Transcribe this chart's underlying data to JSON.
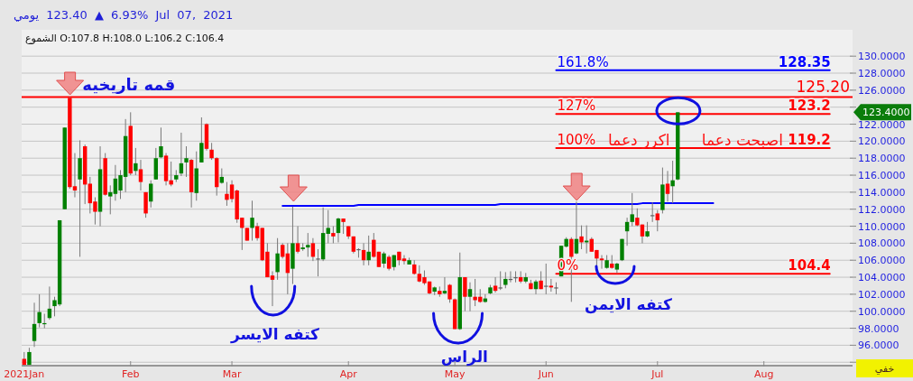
{
  "chart_data": {
    "type": "candlestick",
    "title": "يومي 123.40 ▲ 6.93% Jul 07, 2021",
    "subtitle": "الشموع O:107.8 H:108.0 L:106.2 C:106.4",
    "categories": [
      "2021Jan",
      null,
      null,
      null,
      null,
      null,
      null,
      null,
      null,
      null,
      null,
      null,
      null,
      null,
      null,
      null,
      null,
      null,
      null,
      null,
      null,
      "Feb",
      null,
      null,
      null,
      null,
      null,
      null,
      null,
      null,
      null,
      null,
      null,
      null,
      null,
      null,
      null,
      null,
      null,
      null,
      null,
      "Mar",
      null,
      null,
      null,
      null,
      null,
      null,
      null,
      null,
      null,
      null,
      null,
      null,
      null,
      null,
      null,
      null,
      null,
      null,
      null,
      null,
      null,
      null,
      "Apr",
      null,
      null,
      null,
      null,
      null,
      null,
      null,
      null,
      null,
      null,
      null,
      null,
      null,
      null,
      null,
      null,
      null,
      null,
      null,
      null,
      "May",
      null,
      null,
      null,
      null,
      null,
      null,
      null,
      null,
      null,
      null,
      null,
      null,
      null,
      null,
      null,
      null,
      null,
      "Jun",
      null,
      null,
      null,
      null,
      null,
      null,
      null,
      null,
      null,
      null,
      null,
      null,
      null,
      null,
      null,
      null,
      null,
      null,
      null,
      null,
      null,
      "Jul",
      null,
      null,
      null,
      null,
      null,
      null,
      null,
      null,
      null,
      null,
      null,
      null,
      null,
      null,
      null,
      null,
      null,
      null,
      null,
      null,
      "Aug",
      null,
      null,
      null,
      null,
      null,
      null,
      null,
      null,
      null,
      null,
      null,
      null,
      null,
      null,
      null,
      null,
      null
    ],
    "ohlc": [
      [
        94.4,
        95.2,
        93.7,
        93.7
      ],
      [
        93.7,
        95.7,
        93.7,
        95.2
      ],
      [
        96.5,
        101.0,
        95.8,
        98.5
      ],
      [
        98.6,
        102.0,
        98.1,
        99.9
      ],
      [
        98.5,
        99.7,
        98.0,
        98.6
      ],
      [
        99.2,
        102.9,
        99.0,
        100.3
      ],
      [
        100.6,
        101.7,
        99.4,
        101.3
      ],
      [
        100.8,
        110.7,
        100.6,
        110.7
      ],
      [
        112.0,
        121.6,
        112.0,
        121.6
      ],
      [
        125.1,
        125.2,
        114.4,
        114.6
      ],
      [
        114.7,
        118.6,
        113.4,
        114.2
      ],
      [
        115.5,
        120.1,
        106.4,
        118.0
      ],
      [
        119.4,
        119.6,
        112.6,
        114.9
      ],
      [
        115.0,
        115.8,
        111.5,
        112.7
      ],
      [
        112.9,
        113.4,
        110.2,
        111.7
      ],
      [
        111.7,
        119.4,
        110.0,
        116.7
      ],
      [
        118.0,
        118.6,
        113.6,
        113.7
      ],
      [
        113.5,
        114.8,
        111.4,
        114.0
      ],
      [
        113.8,
        117.2,
        113.0,
        115.6
      ],
      [
        114.2,
        116.6,
        113.2,
        116.0
      ],
      [
        115.8,
        122.6,
        114.0,
        120.6
      ],
      [
        121.8,
        123.4,
        116.0,
        116.2
      ],
      [
        116.5,
        119.2,
        116.0,
        117.4
      ],
      [
        116.7,
        117.8,
        114.2,
        115.2
      ],
      [
        114.0,
        114.0,
        111.0,
        111.5
      ],
      [
        112.9,
        115.4,
        112.2,
        115.0
      ],
      [
        115.5,
        119.2,
        115.5,
        118.0
      ],
      [
        118.1,
        121.6,
        118.0,
        119.4
      ],
      [
        118.3,
        118.6,
        114.8,
        115.3
      ],
      [
        115.4,
        117.6,
        114.7,
        114.9
      ],
      [
        115.5,
        116.6,
        115.2,
        116.0
      ],
      [
        116.2,
        121.0,
        115.9,
        117.4
      ],
      [
        117.5,
        119.4,
        115.8,
        118.0
      ],
      [
        117.8,
        117.9,
        112.2,
        114.0
      ],
      [
        113.9,
        118.8,
        113.0,
        116.8
      ],
      [
        117.5,
        122.8,
        117.5,
        119.8
      ],
      [
        122.0,
        122.1,
        118.9,
        119.1
      ],
      [
        119.0,
        119.8,
        117.8,
        118.0
      ],
      [
        118.0,
        118.1,
        113.6,
        114.6
      ],
      [
        115.1,
        116.8,
        115.0,
        115.8
      ],
      [
        113.8,
        115.2,
        112.4,
        113.1
      ],
      [
        114.9,
        115.4,
        112.8,
        113.2
      ],
      [
        114.2,
        114.3,
        110.4,
        110.8
      ],
      [
        111.0,
        111.0,
        107.2,
        109.8
      ],
      [
        109.8,
        109.8,
        108.3,
        108.3
      ],
      [
        109.8,
        113.0,
        108.3,
        111.0
      ],
      [
        110.0,
        110.4,
        108.3,
        108.6
      ],
      [
        109.8,
        109.8,
        105.9,
        106.0
      ],
      [
        107.0,
        108.0,
        104.0,
        104.0
      ],
      [
        104.2,
        104.7,
        100.6,
        103.7
      ],
      [
        104.6,
        108.6,
        103.7,
        106.8
      ],
      [
        107.8,
        108.0,
        106.2,
        106.4
      ],
      [
        106.8,
        108.0,
        102.0,
        104.5
      ],
      [
        105.0,
        112.3,
        103.2,
        108.0
      ],
      [
        108.0,
        110.0,
        106.8,
        107.0
      ],
      [
        107.3,
        108.0,
        107.1,
        107.5
      ],
      [
        107.5,
        109.2,
        106.4,
        107.8
      ],
      [
        108.0,
        108.6,
        105.9,
        106.4
      ],
      [
        106.2,
        107.3,
        104.1,
        106.2
      ],
      [
        106.1,
        112.2,
        105.9,
        109.2
      ],
      [
        109.1,
        111.9,
        108.0,
        109.8
      ],
      [
        109.2,
        110.0,
        108.0,
        108.8
      ],
      [
        109.2,
        111.0,
        108.1,
        110.9
      ],
      [
        110.9,
        110.9,
        109.1,
        110.5
      ],
      [
        110.0,
        110.0,
        108.5,
        108.8
      ],
      [
        108.8,
        108.8,
        106.8,
        107.0
      ],
      [
        107.3,
        107.4,
        106.3,
        107.3
      ],
      [
        107.2,
        108.0,
        105.4,
        106.0
      ],
      [
        106.0,
        108.9,
        105.4,
        107.0
      ],
      [
        108.4,
        109.2,
        106.3,
        106.4
      ],
      [
        107.0,
        107.0,
        105.2,
        105.2
      ],
      [
        105.6,
        107.0,
        105.1,
        106.8
      ],
      [
        106.4,
        106.6,
        104.8,
        105.0
      ],
      [
        105.2,
        106.6,
        104.8,
        106.6
      ],
      [
        107.0,
        107.0,
        105.4,
        106.0
      ],
      [
        106.2,
        106.6,
        105.5,
        105.9
      ],
      [
        105.5,
        106.3,
        105.5,
        106.0
      ],
      [
        105.5,
        106.0,
        104.3,
        104.4
      ],
      [
        104.4,
        105.4,
        103.4,
        103.5
      ],
      [
        104.0,
        104.8,
        103.1,
        103.3
      ],
      [
        103.5,
        103.5,
        102.0,
        102.1
      ],
      [
        102.3,
        102.9,
        101.9,
        102.8
      ],
      [
        102.4,
        102.9,
        101.7,
        102.0
      ],
      [
        102.1,
        104.0,
        102.0,
        102.4
      ],
      [
        103.1,
        103.2,
        101.0,
        101.4
      ],
      [
        101.4,
        101.5,
        97.9,
        97.9
      ],
      [
        97.9,
        106.9,
        97.8,
        104.0
      ],
      [
        104.0,
        104.0,
        100.0,
        101.7
      ],
      [
        101.7,
        103.4,
        100.0,
        102.6
      ],
      [
        101.7,
        103.8,
        100.6,
        101.3
      ],
      [
        101.7,
        102.6,
        101.0,
        101.1
      ],
      [
        101.1,
        102.0,
        101.0,
        101.5
      ],
      [
        102.1,
        103.1,
        102.0,
        102.8
      ],
      [
        103.0,
        104.0,
        102.2,
        102.4
      ],
      [
        102.8,
        104.7,
        102.5,
        102.8
      ],
      [
        103.1,
        104.6,
        102.7,
        103.8
      ],
      [
        103.8,
        104.7,
        103.4,
        103.8
      ],
      [
        104.0,
        104.7,
        103.4,
        104.0
      ],
      [
        104.0,
        104.7,
        103.3,
        103.5
      ],
      [
        103.5,
        104.5,
        103.3,
        104.0
      ],
      [
        103.3,
        103.7,
        102.6,
        102.6
      ],
      [
        102.6,
        103.7,
        102.0,
        103.5
      ],
      [
        103.6,
        104.7,
        102.6,
        102.6
      ],
      [
        103.0,
        105.6,
        102.0,
        103.0
      ],
      [
        103.0,
        103.8,
        102.3,
        102.8
      ],
      [
        102.8,
        103.4,
        102.0,
        102.8
      ],
      [
        104.1,
        107.7,
        104.1,
        107.7
      ],
      [
        107.6,
        108.7,
        107.5,
        108.5
      ],
      [
        108.5,
        108.7,
        101.1,
        106.4
      ],
      [
        106.8,
        112.9,
        106.7,
        108.5
      ],
      [
        108.8,
        110.1,
        107.3,
        108.1
      ],
      [
        108.1,
        110.1,
        106.8,
        108.3
      ],
      [
        108.5,
        108.7,
        107.0,
        107.0
      ],
      [
        107.2,
        107.2,
        105.2,
        106.2
      ],
      [
        106.2,
        106.6,
        105.0,
        106.0
      ],
      [
        105.1,
        106.6,
        105.0,
        106.0
      ],
      [
        105.6,
        106.6,
        105.0,
        105.1
      ],
      [
        104.9,
        105.7,
        104.5,
        105.6
      ],
      [
        106.0,
        108.5,
        105.9,
        108.5
      ],
      [
        109.4,
        111.0,
        107.7,
        110.5
      ],
      [
        110.5,
        113.9,
        110.0,
        111.4
      ],
      [
        111.0,
        112.1,
        110.0,
        110.1
      ],
      [
        110.2,
        110.2,
        108.0,
        108.8
      ],
      [
        108.8,
        110.5,
        108.7,
        109.4
      ],
      [
        111.3,
        112.8,
        110.5,
        111.3
      ],
      [
        111.5,
        111.9,
        109.4,
        110.7
      ],
      [
        111.9,
        116.9,
        111.5,
        114.9
      ],
      [
        115.0,
        116.5,
        112.9,
        113.8
      ],
      [
        114.7,
        117.7,
        112.7,
        115.4
      ],
      [
        115.5,
        123.4,
        115.4,
        123.4
      ],
      null,
      null,
      null,
      null,
      null,
      null,
      null,
      null,
      null,
      null,
      null,
      null,
      null,
      null,
      null,
      null,
      null,
      null,
      null,
      null,
      null,
      null,
      null,
      null,
      null,
      null,
      null,
      null,
      null,
      null,
      null,
      null,
      null,
      null
    ],
    "series": [
      {
        "type": "line",
        "name": "161.8%",
        "color": "#0000ff",
        "values": [
          null,
          null,
          null,
          null,
          null,
          null,
          null,
          null,
          null,
          null,
          null,
          null,
          null,
          null,
          null,
          null,
          null,
          null,
          null,
          null,
          null,
          null,
          null,
          null,
          null,
          null,
          null,
          null,
          null,
          null,
          null,
          null,
          null,
          null,
          null,
          null,
          null,
          null,
          null,
          null,
          null,
          null,
          null,
          null,
          null,
          null,
          null,
          null,
          null,
          null,
          null,
          null,
          null,
          null,
          null,
          null,
          null,
          null,
          null,
          null,
          null,
          null,
          null,
          null,
          null,
          null,
          null,
          null,
          null,
          null,
          null,
          null,
          null,
          null,
          null,
          null,
          null,
          null,
          null,
          null,
          null,
          null,
          null,
          null,
          null,
          null,
          null,
          null,
          null,
          null,
          null,
          null,
          null,
          null,
          null,
          null,
          null,
          null,
          null,
          null,
          null,
          null,
          null,
          null,
          null,
          128.35,
          128.35,
          128.35,
          128.35,
          128.35,
          128.35,
          128.35,
          128.35,
          128.35,
          128.35,
          128.35,
          128.35,
          128.35,
          128.35,
          128.35,
          128.35,
          128.35,
          128.35,
          128.35,
          128.35,
          128.35,
          128.35,
          128.35,
          128.35,
          128.35,
          128.35,
          128.35,
          128.35,
          128.35,
          128.35,
          128.35,
          128.35,
          128.35,
          128.35,
          128.35,
          128.35,
          128.35,
          128.35,
          128.35,
          128.35,
          128.35,
          128.35,
          128.35,
          128.35,
          128.35,
          128.35,
          128.35,
          128.35,
          128.35,
          128.35,
          128.35,
          128.35,
          128.35,
          128.35,
          128.35,
          null,
          null,
          null,
          null
        ],
        "value_labels": [
          null,
          null,
          null,
          null,
          null,
          null,
          null,
          null,
          null,
          null,
          null,
          null,
          null,
          null,
          null,
          null,
          null,
          null,
          null,
          null,
          null,
          null,
          null,
          null,
          null,
          null,
          null,
          null,
          null,
          null,
          null,
          null,
          null,
          null,
          null,
          null,
          null,
          null,
          null,
          null,
          null,
          null,
          null,
          null,
          null,
          null,
          null,
          null,
          null,
          null,
          null,
          null,
          null,
          null,
          null,
          null,
          null,
          null,
          null,
          null,
          null,
          null,
          null,
          null,
          null,
          null,
          null,
          null,
          null,
          null,
          null,
          null,
          null,
          null,
          null,
          null,
          null,
          null,
          null,
          null,
          null,
          null,
          null,
          null,
          null,
          null,
          null,
          null,
          null,
          null,
          null,
          null,
          null,
          null,
          null,
          null,
          null,
          null,
          null,
          null,
          null,
          null,
          null,
          null,
          null,
          null,
          null,
          null,
          null,
          null,
          null,
          null,
          null,
          null,
          null,
          null,
          null,
          null,
          null,
          null,
          null,
          null,
          null,
          null,
          null,
          null,
          null,
          null,
          null,
          null,
          null,
          null,
          null,
          null,
          null,
          null,
          null,
          null,
          null,
          null,
          null,
          null,
          null,
          null,
          null,
          null,
          null,
          null,
          null,
          null,
          null,
          null,
          null,
          null,
          null,
          null,
          null,
          null,
          null,
          "128.35",
          null,
          null,
          null,
          null
        ]
      },
      {
        "type": "line",
        "name": "127%",
        "color": "#ff0000",
        "values": [
          null,
          null,
          null,
          null,
          null,
          null,
          null,
          null,
          null,
          null,
          null,
          null,
          null,
          null,
          null,
          null,
          null,
          null,
          null,
          null,
          null,
          null,
          null,
          null,
          null,
          null,
          null,
          null,
          null,
          null,
          null,
          null,
          null,
          null,
          null,
          null,
          null,
          null,
          null,
          null,
          null,
          null,
          null,
          null,
          null,
          null,
          null,
          null,
          null,
          null,
          null,
          null,
          null,
          null,
          null,
          null,
          null,
          null,
          null,
          null,
          null,
          null,
          null,
          null,
          null,
          null,
          null,
          null,
          null,
          null,
          null,
          null,
          null,
          null,
          null,
          null,
          null,
          null,
          null,
          null,
          null,
          null,
          null,
          null,
          null,
          null,
          null,
          null,
          null,
          null,
          null,
          null,
          null,
          null,
          null,
          null,
          null,
          null,
          null,
          null,
          null,
          null,
          null,
          null,
          null,
          123.2,
          123.2,
          123.2,
          123.2,
          123.2,
          123.2,
          123.2,
          123.2,
          123.2,
          123.2,
          123.2,
          123.2,
          123.2,
          123.2,
          123.2,
          123.2,
          123.2,
          123.2,
          123.2,
          123.2,
          123.2,
          123.2,
          123.2,
          123.2,
          123.2,
          123.2,
          123.2,
          123.2,
          123.2,
          123.2,
          123.2,
          123.2,
          123.2,
          123.2,
          123.2,
          123.2,
          123.2,
          123.2,
          123.2,
          123.2,
          123.2,
          123.2,
          123.2,
          123.2,
          123.2,
          123.2,
          123.2,
          123.2,
          123.2,
          123.2,
          123.2,
          123.2,
          123.2,
          123.2,
          123.2,
          null,
          null,
          null,
          null
        ],
        "value_labels": [
          null,
          null,
          null,
          null,
          null,
          null,
          null,
          null,
          null,
          null,
          null,
          null,
          null,
          null,
          null,
          null,
          null,
          null,
          null,
          null,
          null,
          null,
          null,
          null,
          null,
          null,
          null,
          null,
          null,
          null,
          null,
          null,
          null,
          null,
          null,
          null,
          null,
          null,
          null,
          null,
          null,
          null,
          null,
          null,
          null,
          null,
          null,
          null,
          null,
          null,
          null,
          null,
          null,
          null,
          null,
          null,
          null,
          null,
          null,
          null,
          null,
          null,
          null,
          null,
          null,
          null,
          null,
          null,
          null,
          null,
          null,
          null,
          null,
          null,
          null,
          null,
          null,
          null,
          null,
          null,
          null,
          null,
          null,
          null,
          null,
          null,
          null,
          null,
          null,
          null,
          null,
          null,
          null,
          null,
          null,
          null,
          null,
          null,
          null,
          null,
          null,
          null,
          null,
          null,
          null,
          null,
          null,
          null,
          null,
          null,
          null,
          null,
          null,
          null,
          null,
          null,
          null,
          null,
          null,
          null,
          null,
          null,
          null,
          null,
          null,
          null,
          null,
          null,
          null,
          null,
          null,
          null,
          null,
          null,
          null,
          null,
          null,
          null,
          null,
          null,
          null,
          null,
          null,
          null,
          null,
          null,
          null,
          null,
          null,
          null,
          null,
          null,
          null,
          null,
          null,
          null,
          null,
          null,
          null,
          "123.2",
          null,
          null,
          null,
          null
        ]
      },
      {
        "type": "line",
        "name": "100%",
        "color": "#ff0000",
        "values": [
          null,
          null,
          null,
          null,
          null,
          null,
          null,
          null,
          null,
          null,
          null,
          null,
          null,
          null,
          null,
          null,
          null,
          null,
          null,
          null,
          null,
          null,
          null,
          null,
          null,
          null,
          null,
          null,
          null,
          null,
          null,
          null,
          null,
          null,
          null,
          null,
          null,
          null,
          null,
          null,
          null,
          null,
          null,
          null,
          null,
          null,
          null,
          null,
          null,
          null,
          null,
          null,
          null,
          null,
          null,
          null,
          null,
          null,
          null,
          null,
          null,
          null,
          null,
          null,
          null,
          null,
          null,
          null,
          null,
          null,
          null,
          null,
          null,
          null,
          null,
          null,
          null,
          null,
          null,
          null,
          null,
          null,
          null,
          null,
          null,
          null,
          null,
          null,
          null,
          null,
          null,
          null,
          null,
          null,
          null,
          null,
          null,
          null,
          null,
          null,
          null,
          null,
          null,
          null,
          null,
          119.2,
          119.2,
          119.2,
          119.2,
          119.2,
          119.2,
          119.2,
          119.2,
          119.2,
          119.2,
          119.2,
          119.2,
          119.2,
          119.2,
          119.2,
          119.2,
          119.2,
          119.2,
          119.2,
          119.2,
          119.2,
          119.2,
          119.2,
          119.2,
          119.2,
          119.2,
          119.2,
          119.2,
          119.2,
          119.2,
          119.2,
          119.2,
          119.2,
          119.2,
          119.2,
          119.2,
          119.2,
          119.2,
          119.2,
          119.2,
          119.2,
          119.2,
          119.2,
          119.2,
          119.2,
          119.2,
          119.2,
          119.2,
          119.2,
          119.2,
          119.2,
          119.2,
          119.2,
          119.2,
          119.2,
          null,
          null,
          null,
          null
        ],
        "value_labels": [
          null,
          null,
          null,
          null,
          null,
          null,
          null,
          null,
          null,
          null,
          null,
          null,
          null,
          null,
          null,
          null,
          null,
          null,
          null,
          null,
          null,
          null,
          null,
          null,
          null,
          null,
          null,
          null,
          null,
          null,
          null,
          null,
          null,
          null,
          null,
          null,
          null,
          null,
          null,
          null,
          null,
          null,
          null,
          null,
          null,
          null,
          null,
          null,
          null,
          null,
          null,
          null,
          null,
          null,
          null,
          null,
          null,
          null,
          null,
          null,
          null,
          null,
          null,
          null,
          null,
          null,
          null,
          null,
          null,
          null,
          null,
          null,
          null,
          null,
          null,
          null,
          null,
          null,
          null,
          null,
          null,
          null,
          null,
          null,
          null,
          null,
          null,
          null,
          null,
          null,
          null,
          null,
          null,
          null,
          null,
          null,
          null,
          null,
          null,
          null,
          null,
          null,
          null,
          null,
          null,
          null,
          null,
          null,
          null,
          null,
          null,
          null,
          null,
          null,
          null,
          null,
          null,
          null,
          null,
          null,
          null,
          null,
          null,
          null,
          null,
          null,
          null,
          null,
          null,
          null,
          null,
          null,
          null,
          null,
          null,
          null,
          null,
          null,
          null,
          null,
          null,
          null,
          null,
          null,
          null,
          null,
          null,
          null,
          null,
          null,
          null,
          null,
          null,
          null,
          null,
          null,
          null,
          null,
          null,
          "119.2",
          null,
          null,
          null,
          null
        ]
      },
      {
        "type": "line",
        "name": "0%",
        "color": "#ff0000",
        "values": [
          null,
          null,
          null,
          null,
          null,
          null,
          null,
          null,
          null,
          null,
          null,
          null,
          null,
          null,
          null,
          null,
          null,
          null,
          null,
          null,
          null,
          null,
          null,
          null,
          null,
          null,
          null,
          null,
          null,
          null,
          null,
          null,
          null,
          null,
          null,
          null,
          null,
          null,
          null,
          null,
          null,
          null,
          null,
          null,
          null,
          null,
          null,
          null,
          null,
          null,
          null,
          null,
          null,
          null,
          null,
          null,
          null,
          null,
          null,
          null,
          null,
          null,
          null,
          null,
          null,
          null,
          null,
          null,
          null,
          null,
          null,
          null,
          null,
          null,
          null,
          null,
          null,
          null,
          null,
          null,
          null,
          null,
          null,
          null,
          null,
          null,
          null,
          null,
          null,
          null,
          null,
          null,
          null,
          null,
          null,
          null,
          null,
          null,
          null,
          null,
          null,
          null,
          null,
          null,
          null,
          104.4,
          104.4,
          104.4,
          104.4,
          104.4,
          104.4,
          104.4,
          104.4,
          104.4,
          104.4,
          104.4,
          104.4,
          104.4,
          104.4,
          104.4,
          104.4,
          104.4,
          104.4,
          104.4,
          104.4,
          104.4,
          104.4,
          104.4,
          104.4,
          104.4,
          104.4,
          104.4,
          104.4,
          104.4,
          104.4,
          104.4,
          104.4,
          104.4,
          104.4,
          104.4,
          104.4,
          104.4,
          104.4,
          104.4,
          104.4,
          104.4,
          104.4,
          104.4,
          104.4,
          104.4,
          104.4,
          104.4,
          104.4,
          104.4,
          104.4,
          104.4,
          104.4,
          104.4,
          104.4,
          104.4,
          null,
          null,
          null,
          null
        ],
        "value_labels": [
          null,
          null,
          null,
          null,
          null,
          null,
          null,
          null,
          null,
          null,
          null,
          null,
          null,
          null,
          null,
          null,
          null,
          null,
          null,
          null,
          null,
          null,
          null,
          null,
          null,
          null,
          null,
          null,
          null,
          null,
          null,
          null,
          null,
          null,
          null,
          null,
          null,
          null,
          null,
          null,
          null,
          null,
          null,
          null,
          null,
          null,
          null,
          null,
          null,
          null,
          null,
          null,
          null,
          null,
          null,
          null,
          null,
          null,
          null,
          null,
          null,
          null,
          null,
          null,
          null,
          null,
          null,
          null,
          null,
          null,
          null,
          null,
          null,
          null,
          null,
          null,
          null,
          null,
          null,
          null,
          null,
          null,
          null,
          null,
          null,
          null,
          null,
          null,
          null,
          null,
          null,
          null,
          null,
          null,
          null,
          null,
          null,
          null,
          null,
          null,
          null,
          null,
          null,
          null,
          null,
          null,
          null,
          null,
          null,
          null,
          null,
          null,
          null,
          null,
          null,
          null,
          null,
          null,
          null,
          null,
          null,
          null,
          null,
          null,
          null,
          null,
          null,
          null,
          null,
          null,
          null,
          null,
          null,
          null,
          null,
          null,
          null,
          null,
          null,
          null,
          null,
          null,
          null,
          null,
          null,
          null,
          null,
          null,
          null,
          null,
          null,
          null,
          null,
          null,
          null,
          null,
          null,
          null,
          null,
          "104.4",
          null,
          null,
          null,
          null
        ]
      },
      {
        "type": "line",
        "color": "#0000ff",
        "values": [
          null,
          null,
          null,
          null,
          null,
          null,
          null,
          null,
          null,
          null,
          null,
          null,
          null,
          null,
          null,
          null,
          null,
          null,
          null,
          null,
          null,
          null,
          null,
          null,
          null,
          null,
          null,
          null,
          null,
          null,
          null,
          null,
          null,
          null,
          null,
          null,
          null,
          null,
          null,
          null,
          null,
          null,
          null,
          null,
          null,
          null,
          null,
          null,
          null,
          null,
          null,
          112.4,
          112.4,
          112.4,
          112.4,
          112.4,
          112.4,
          112.4,
          112.4,
          112.4,
          112.4,
          112.4,
          112.4,
          112.4,
          112.4,
          112.4,
          112.5,
          112.5,
          112.5,
          112.5,
          112.5,
          112.5,
          112.5,
          112.5,
          112.5,
          112.5,
          112.5,
          112.5,
          112.5,
          112.5,
          112.5,
          112.5,
          112.5,
          112.5,
          112.5,
          112.5,
          112.5,
          112.5,
          112.5,
          112.5,
          112.5,
          112.5,
          112.5,
          112.5,
          112.6,
          112.6,
          112.6,
          112.6,
          112.6,
          112.6,
          112.6,
          112.6,
          112.6,
          112.6,
          112.6,
          112.6,
          112.6,
          112.6,
          112.6,
          112.6,
          112.6,
          112.6,
          112.6,
          112.6,
          112.6,
          112.6,
          112.6,
          112.6,
          112.6,
          112.6,
          112.6,
          112.6,
          112.7,
          112.7,
          112.7,
          112.7,
          112.7,
          112.7,
          112.7,
          112.7,
          112.7,
          112.7,
          112.7,
          112.7,
          112.7,
          112.7,
          112.7,
          null,
          null,
          null,
          null,
          null,
          null,
          null,
          null,
          null,
          null,
          null,
          null,
          null,
          null,
          null,
          null,
          null,
          null,
          null,
          null,
          null,
          null,
          null,
          null,
          null,
          null,
          null
        ]
      }
    ],
    "ref_lines": [
      {
        "axis": "y",
        "value": 125.2,
        "label": "125.20",
        "color": "#ff0000"
      }
    ],
    "annotations": [
      "قمه تاريخيه",
      "كتفه الايسر",
      "الراس",
      "كتفه الايمن",
      "اكرر دعما",
      "اصبحت دعما",
      "123.4000",
      "خفي"
    ],
    "ylim": [
      93.6,
      133.1
    ],
    "yticks": [
      {
        "value": 94,
        "label": null
      },
      {
        "value": 96,
        "label": "96.0000"
      },
      {
        "value": 98,
        "label": "98.0000"
      },
      {
        "value": 100,
        "label": "100.0000"
      },
      {
        "value": 102,
        "label": "102.0000"
      },
      {
        "value": 104,
        "label": "104.0000"
      },
      {
        "value": 106,
        "label": "106.0000"
      },
      {
        "value": 108,
        "label": "108.0000"
      },
      {
        "value": 110,
        "label": "110.0000"
      },
      {
        "value": 112,
        "label": "112.0000"
      },
      {
        "value": 114,
        "label": "114.0000"
      },
      {
        "value": 116,
        "label": "116.0000"
      },
      {
        "value": 118,
        "label": "118.0000"
      },
      {
        "value": 120,
        "label": "120.0000"
      },
      {
        "value": 122,
        "label": "122.0000"
      },
      {
        "value": 124,
        "label": null
      },
      {
        "value": 126,
        "label": "126.0000"
      },
      {
        "value": 128,
        "label": "128.0000"
      },
      {
        "value": 130,
        "label": "130.0000"
      }
    ],
    "grid": "y"
  }
}
